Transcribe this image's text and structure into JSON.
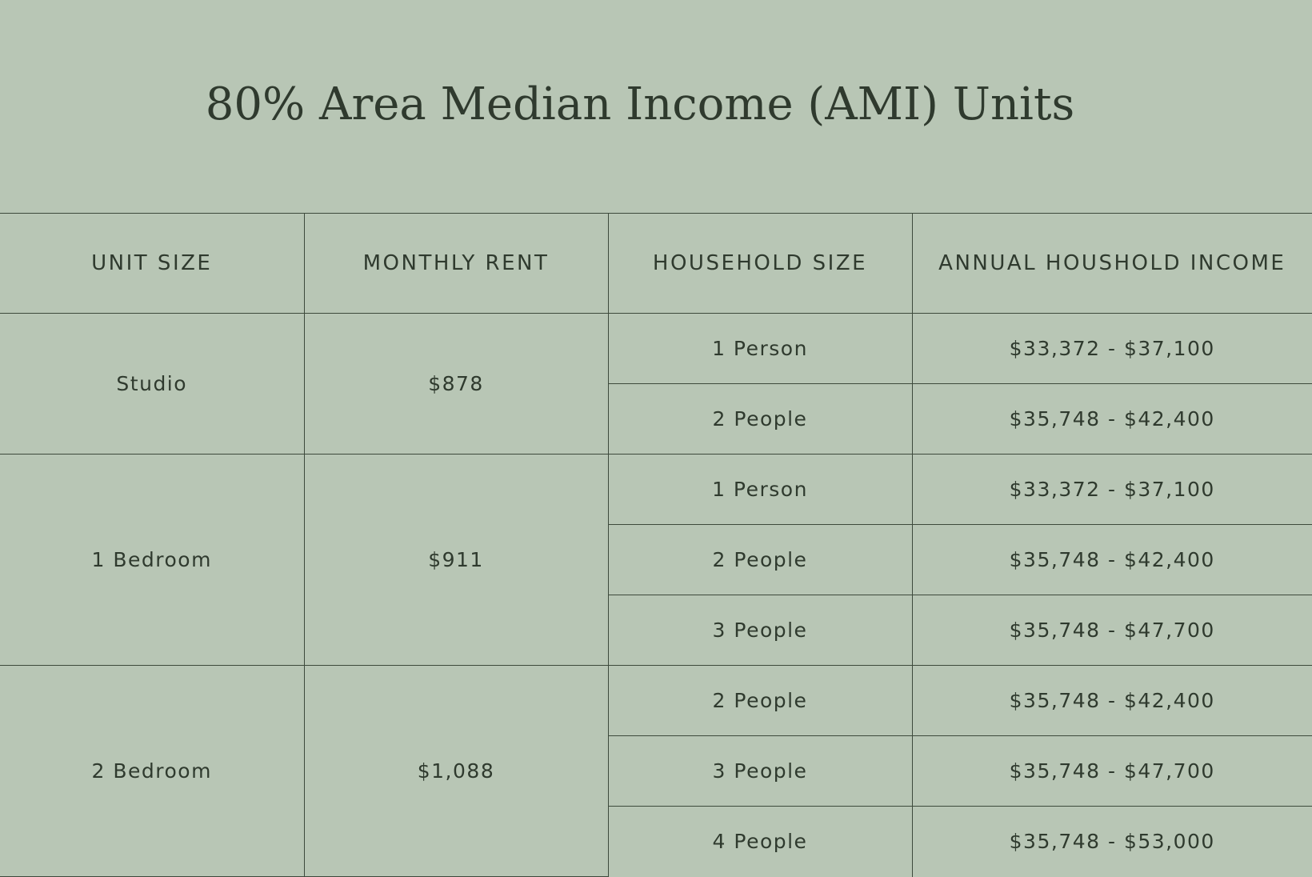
{
  "title": "80% Area Median Income (AMI) Units",
  "table": {
    "headers": [
      "UNIT SIZE",
      "MONTHLY RENT",
      "HOUSEHOLD SIZE",
      "ANNUAL HOUSHOLD INCOME"
    ],
    "groups": [
      {
        "unit_size": "Studio",
        "monthly_rent": "$878",
        "rows": [
          {
            "household_size": "1 Person",
            "income": "$33,372 - $37,100"
          },
          {
            "household_size": "2 People",
            "income": "$35,748 - $42,400"
          }
        ]
      },
      {
        "unit_size": "1 Bedroom",
        "monthly_rent": "$911",
        "rows": [
          {
            "household_size": "1 Person",
            "income": "$33,372 - $37,100"
          },
          {
            "household_size": "2 People",
            "income": "$35,748 - $42,400"
          },
          {
            "household_size": "3 People",
            "income": "$35,748 - $47,700"
          }
        ]
      },
      {
        "unit_size": "2 Bedroom",
        "monthly_rent": "$1,088",
        "rows": [
          {
            "household_size": "2 People",
            "income": "$35,748 - $42,400"
          },
          {
            "household_size": "3 People",
            "income": "$35,748 - $47,700"
          },
          {
            "household_size": "4 People",
            "income": "$35,748 - $53,000"
          }
        ]
      }
    ]
  }
}
